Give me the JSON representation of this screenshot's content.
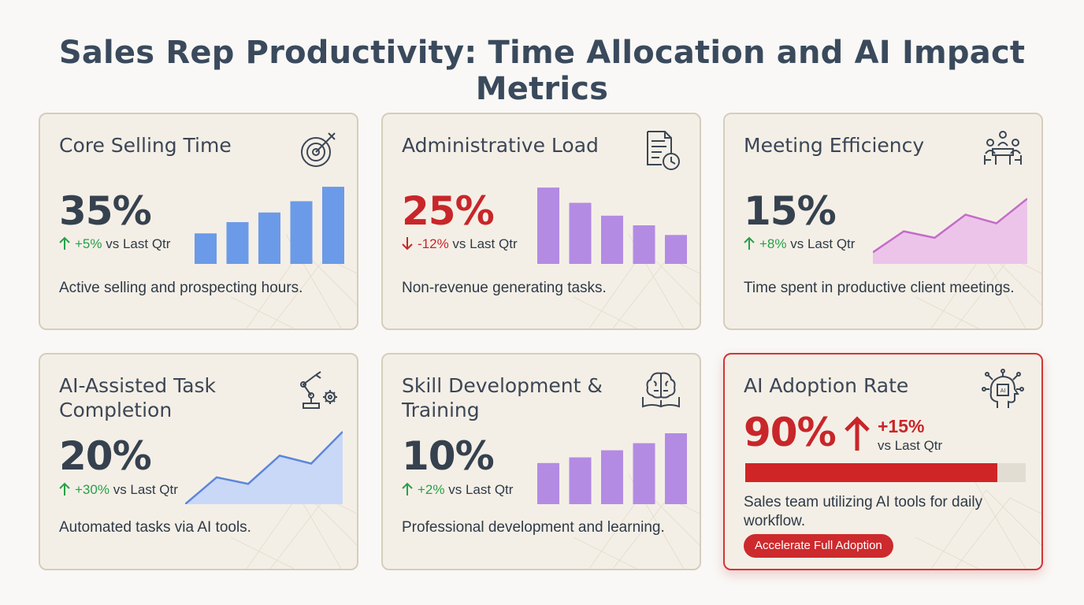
{
  "page_title": "Sales Rep Productivity: Time Allocation and AI Impact Metrics",
  "colors": {
    "bar_blue": "#6b9ae8",
    "bar_purple": "#b38be3",
    "area_pink": "#ecc4ea",
    "line_pink": "#c46cc8",
    "area_blue": "#c9d8f7",
    "line_blue": "#5b86dc",
    "up_green": "#27a04a",
    "down_red": "#c8262a",
    "accent_red": "#cf2527"
  },
  "cards": {
    "core_selling": {
      "title": "Core Selling Time",
      "icon": "target-icon",
      "value": "35%",
      "delta": "+5%",
      "compare": "vs Last Qtr",
      "description": "Active selling and prospecting hours.",
      "chart_values": [
        38,
        52,
        64,
        78,
        96
      ]
    },
    "admin_load": {
      "title": "Administrative Load",
      "icon": "document-clock-icon",
      "value": "25%",
      "delta": "-12%",
      "compare": "vs Last Qtr",
      "description": "Non-revenue generating tasks.",
      "chart_values": [
        95,
        76,
        60,
        48,
        36
      ]
    },
    "meeting_efficiency": {
      "title": "Meeting Efficiency",
      "icon": "meeting-table-icon",
      "value": "15%",
      "delta": "+8%",
      "compare": "vs Last Qtr",
      "description": "Time spent in productive client meetings.",
      "chart_values": [
        16,
        45,
        36,
        68,
        56,
        90
      ]
    },
    "ai_assisted": {
      "title": "AI-Assisted Task Completion",
      "icon": "robot-arm-gear-icon",
      "value": "20%",
      "delta": "+30%",
      "compare": "vs Last Qtr",
      "description": "Automated tasks via AI tools.",
      "chart_values": [
        0,
        37,
        28,
        67,
        56,
        100
      ]
    },
    "skill_dev": {
      "title": "Skill Development & Training",
      "icon": "brain-book-icon",
      "value": "10%",
      "delta": "+2%",
      "compare": "vs Last Qtr",
      "description": "Professional development and learning.",
      "chart_values": [
        58,
        66,
        76,
        86,
        100
      ]
    },
    "ai_adoption": {
      "title": "AI Adoption Rate",
      "icon": "ai-chip-head-icon",
      "value": "90%",
      "delta": "+15%",
      "compare": "vs Last Qtr",
      "progress": 0.9,
      "description": "Sales team utilizing AI tools for daily workflow.",
      "button_label": "Accelerate Full Adoption"
    }
  }
}
